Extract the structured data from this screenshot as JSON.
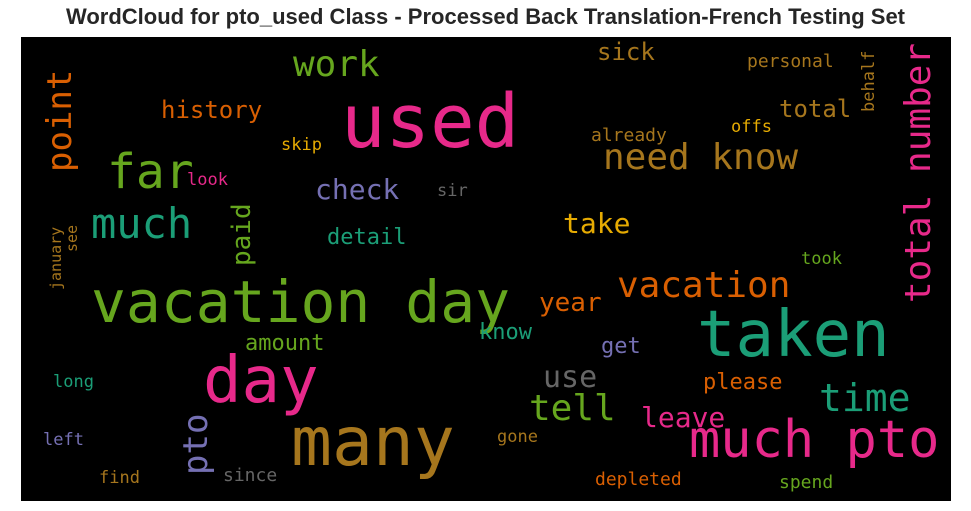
{
  "title": "WordCloud for pto_used Class - Processed Back Translation-French Testing Set",
  "chart_data": {
    "type": "wordcloud",
    "background": "#000000",
    "colormap": "Dark2",
    "words": [
      {
        "text": "used",
        "color": "#e7298a"
      },
      {
        "text": "many",
        "color": "#a6761d"
      },
      {
        "text": "vacation day",
        "color": "#66a61e"
      },
      {
        "text": "taken",
        "color": "#1b9e77"
      },
      {
        "text": "day",
        "color": "#e7298a"
      },
      {
        "text": "much pto",
        "color": "#e7298a"
      },
      {
        "text": "total number",
        "color": "#e7298a"
      },
      {
        "text": "far",
        "color": "#66a61e"
      },
      {
        "text": "much",
        "color": "#1b9e77"
      },
      {
        "text": "need know",
        "color": "#a6761d"
      },
      {
        "text": "vacation",
        "color": "#d95f02"
      },
      {
        "text": "time",
        "color": "#1b9e77"
      },
      {
        "text": "work",
        "color": "#66a61e"
      },
      {
        "text": "tell",
        "color": "#66a61e"
      },
      {
        "text": "pto",
        "color": "#7570b3"
      },
      {
        "text": "point",
        "color": "#d95f02"
      },
      {
        "text": "check",
        "color": "#7570b3"
      },
      {
        "text": "leave",
        "color": "#e7298a"
      },
      {
        "text": "use",
        "color": "#666666"
      },
      {
        "text": "take",
        "color": "#e6ab02"
      },
      {
        "text": "year",
        "color": "#d95f02"
      },
      {
        "text": "paid",
        "color": "#66a61e"
      },
      {
        "text": "history",
        "color": "#d95f02"
      },
      {
        "text": "sick",
        "color": "#a6761d"
      },
      {
        "text": "total",
        "color": "#a6761d"
      },
      {
        "text": "please",
        "color": "#d95f02"
      },
      {
        "text": "detail",
        "color": "#1b9e77"
      },
      {
        "text": "amount",
        "color": "#66a61e"
      },
      {
        "text": "know",
        "color": "#1b9e77"
      },
      {
        "text": "get",
        "color": "#7570b3"
      },
      {
        "text": "personal",
        "color": "#a6761d"
      },
      {
        "text": "behalf",
        "color": "#a6761d"
      },
      {
        "text": "already",
        "color": "#a6761d"
      },
      {
        "text": "offs",
        "color": "#e6ab02"
      },
      {
        "text": "skip",
        "color": "#e6ab02"
      },
      {
        "text": "look",
        "color": "#e7298a"
      },
      {
        "text": "sir",
        "color": "#666666"
      },
      {
        "text": "january",
        "color": "#a6761d"
      },
      {
        "text": "see",
        "color": "#a6761d"
      },
      {
        "text": "took",
        "color": "#66a61e"
      },
      {
        "text": "long",
        "color": "#1b9e77"
      },
      {
        "text": "left",
        "color": "#7570b3"
      },
      {
        "text": "gone",
        "color": "#a6761d"
      },
      {
        "text": "find",
        "color": "#a6761d"
      },
      {
        "text": "since",
        "color": "#666666"
      },
      {
        "text": "depleted",
        "color": "#d95f02"
      },
      {
        "text": "spend",
        "color": "#66a61e"
      }
    ]
  }
}
